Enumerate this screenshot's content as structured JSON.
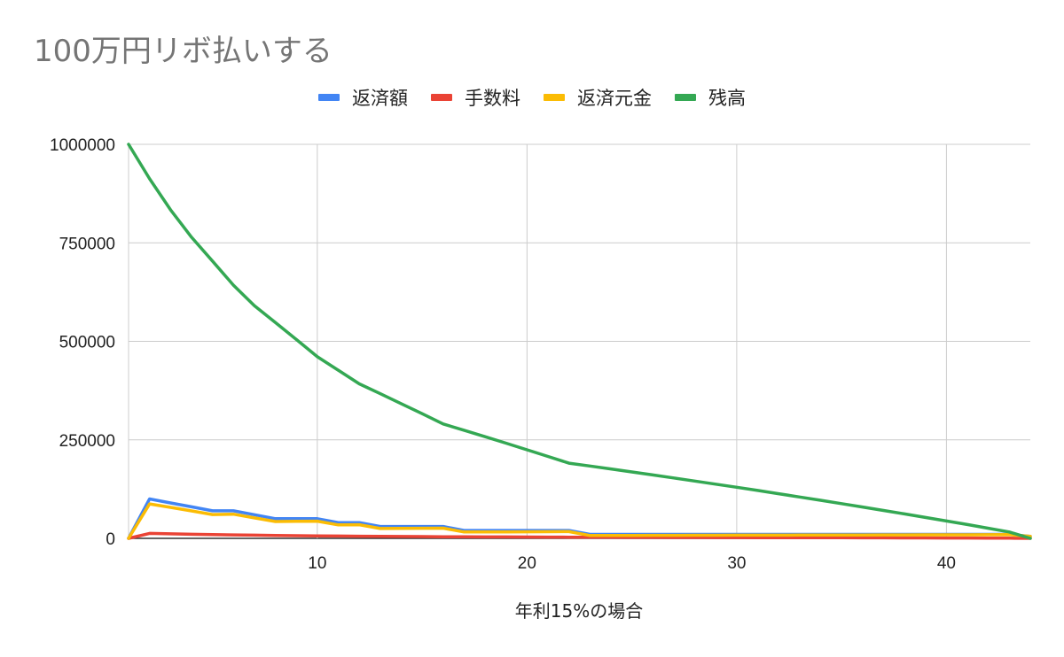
{
  "chart_data": {
    "type": "line",
    "title": "100万円リボ払いする",
    "xlabel": "年利15%の場合",
    "ylabel": "",
    "xlim": [
      1,
      44
    ],
    "ylim": [
      0,
      1000000
    ],
    "x_ticks": [
      10,
      20,
      30,
      40
    ],
    "y_ticks": [
      0,
      250000,
      500000,
      750000,
      1000000
    ],
    "grid": true,
    "legend_position": "top",
    "x": [
      1,
      2,
      3,
      4,
      5,
      6,
      7,
      8,
      9,
      10,
      11,
      12,
      13,
      14,
      15,
      16,
      17,
      18,
      19,
      20,
      21,
      22,
      23,
      24,
      25,
      26,
      27,
      28,
      29,
      30,
      31,
      32,
      33,
      34,
      35,
      36,
      37,
      38,
      39,
      40,
      41,
      42,
      43,
      44
    ],
    "series": [
      {
        "name": "返済額",
        "color": "#4285F4",
        "values": [
          0,
          100000,
          90000,
          80000,
          70000,
          70000,
          60000,
          50000,
          50000,
          50000,
          40000,
          40000,
          30000,
          30000,
          30000,
          30000,
          20000,
          20000,
          20000,
          20000,
          20000,
          20000,
          10000,
          10000,
          10000,
          10000,
          10000,
          10000,
          10000,
          10000,
          10000,
          10000,
          10000,
          10000,
          10000,
          10000,
          10000,
          10000,
          10000,
          10000,
          10000,
          10000,
          10000,
          5000
        ]
      },
      {
        "name": "手数料",
        "color": "#EA4335",
        "values": [
          0,
          12500,
          11400,
          10400,
          9500,
          8700,
          8000,
          7400,
          6800,
          6300,
          5800,
          5400,
          5000,
          4700,
          4400,
          4100,
          3900,
          3700,
          3500,
          3300,
          3100,
          2900,
          2700,
          2600,
          2500,
          2400,
          2300,
          2200,
          2100,
          2000,
          1900,
          1800,
          1700,
          1600,
          1500,
          1400,
          1300,
          1200,
          1100,
          1000,
          900,
          700,
          500,
          100
        ]
      },
      {
        "name": "返済元金",
        "color": "#FBBC04",
        "values": [
          0,
          87500,
          78600,
          69600,
          60500,
          61300,
          52000,
          42600,
          43200,
          43700,
          34200,
          34600,
          25000,
          25300,
          25600,
          25900,
          16100,
          16300,
          16500,
          16700,
          16900,
          17100,
          7300,
          7400,
          7500,
          7600,
          7700,
          7800,
          7900,
          8000,
          8100,
          8200,
          8300,
          8400,
          8500,
          8600,
          8700,
          8800,
          8900,
          9000,
          9100,
          9300,
          9500,
          4900
        ]
      },
      {
        "name": "残高",
        "color": "#34A853",
        "values": [
          1000000,
          912500,
          833900,
          764300,
          703800,
          642500,
          590500,
          547900,
          504700,
          461000,
          426800,
          392200,
          367200,
          341900,
          316300,
          290400,
          274300,
          258000,
          241500,
          224800,
          207900,
          190800,
          183500,
          176100,
          168600,
          161000,
          153300,
          145500,
          137600,
          129600,
          121500,
          113300,
          105000,
          96600,
          88100,
          79500,
          70800,
          62000,
          53100,
          44100,
          35000,
          25700,
          16200,
          0
        ]
      }
    ]
  }
}
